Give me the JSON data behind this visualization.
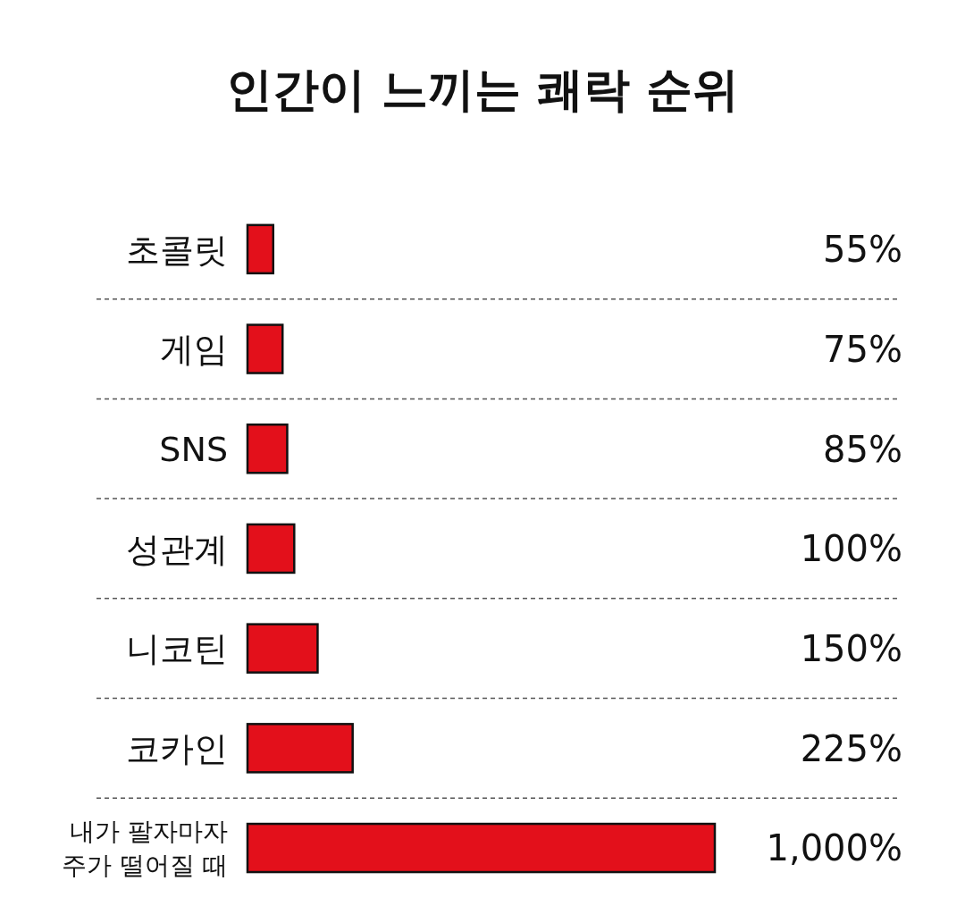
{
  "chart_data": {
    "type": "bar",
    "orientation": "horizontal",
    "title": "인간이 느끼는 쾌락 순위",
    "categories": [
      "초콜릿",
      "게임",
      "SNS",
      "성관계",
      "니코틴",
      "코카인",
      "내가 팔자마자\n주가 떨어질 때"
    ],
    "values": [
      55,
      75,
      85,
      100,
      150,
      225,
      1000
    ],
    "value_labels": [
      "55%",
      "75%",
      "85%",
      "100%",
      "150%",
      "225%",
      "1,000%"
    ],
    "color": "#e3101b"
  }
}
